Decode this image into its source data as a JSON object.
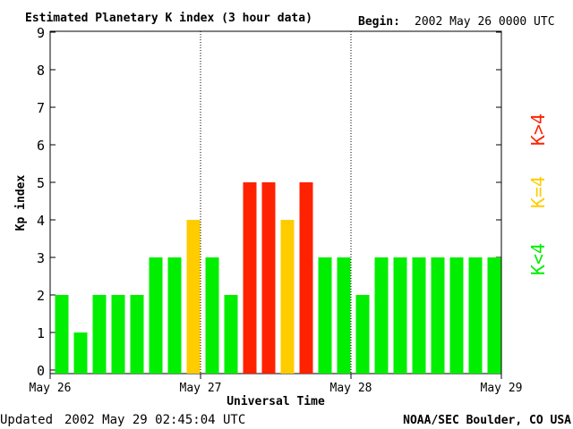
{
  "header": {
    "title": "Estimated Planetary K index (3 hour data)",
    "begin_label": "Begin:",
    "begin_value": "2002 May 26 0000 UTC"
  },
  "footer": {
    "updated_label": "Updated",
    "updated_value": "2002 May 29 02:45:04 UTC",
    "credit": "NOAA/SEC Boulder, CO USA"
  },
  "legend": [
    {
      "label": "K>4",
      "color": "#ff2200"
    },
    {
      "label": "K=4",
      "color": "#ffcc00"
    },
    {
      "label": "K<4",
      "color": "#00ee00"
    }
  ],
  "chart_data": {
    "type": "bar",
    "title": "Estimated Planetary K index (3 hour data)",
    "xlabel": "Universal Time",
    "ylabel": "Kp index",
    "ylim": [
      0,
      9
    ],
    "yticks": [
      0,
      1,
      2,
      3,
      4,
      5,
      6,
      7,
      8,
      9
    ],
    "xticks": [
      "May 26",
      "May 27",
      "May 28",
      "May 29"
    ],
    "day_dividers": [
      8,
      16
    ],
    "grid": false,
    "legend_position": "right",
    "values": [
      2,
      1,
      2,
      2,
      2,
      3,
      3,
      4,
      3,
      2,
      5,
      5,
      4,
      5,
      3,
      3,
      2,
      3,
      3,
      3,
      3,
      3,
      3,
      3
    ],
    "colors": {
      "low": "#00ee00",
      "equal": "#ffcc00",
      "high": "#ff2200"
    }
  }
}
